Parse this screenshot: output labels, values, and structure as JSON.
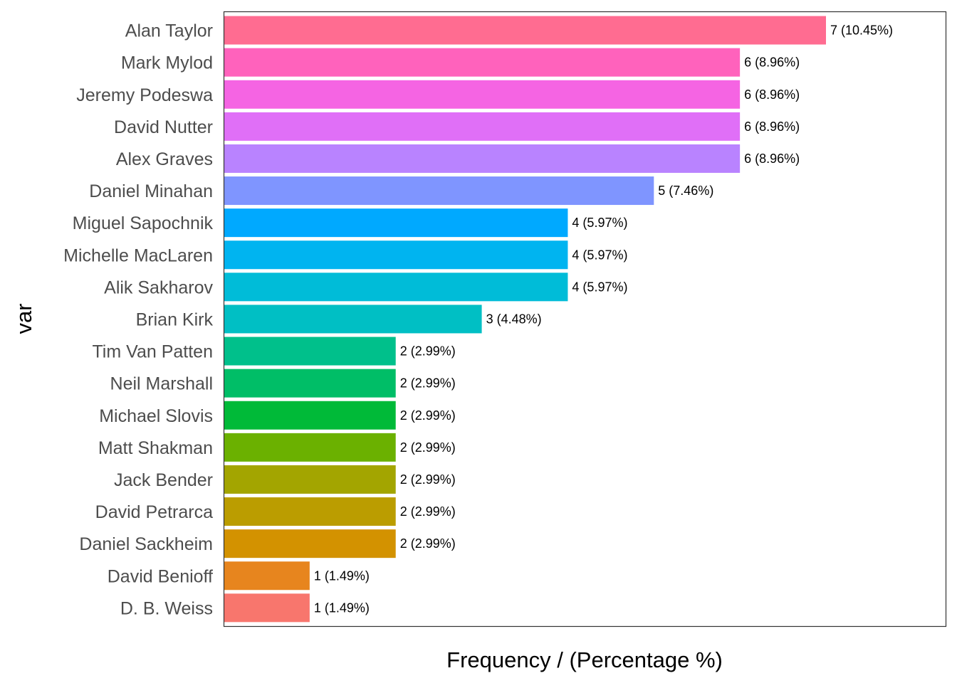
{
  "chart_data": {
    "type": "bar",
    "orientation": "horizontal",
    "xlabel": "Frequency / (Percentage %)",
    "ylabel": "var",
    "xlim": [
      0,
      7
    ],
    "grid": false,
    "legend": "none",
    "categories": [
      "Alan Taylor",
      "Mark Mylod",
      "Jeremy Podeswa",
      "David Nutter",
      "Alex Graves",
      "Daniel Minahan",
      "Miguel Sapochnik",
      "Michelle MacLaren",
      "Alik Sakharov",
      "Brian Kirk",
      "Tim Van Patten",
      "Neil Marshall",
      "Michael Slovis",
      "Matt Shakman",
      "Jack Bender",
      "David Petrarca",
      "Daniel Sackheim",
      "David Benioff",
      "D. B. Weiss"
    ],
    "values": [
      7,
      6,
      6,
      6,
      6,
      5,
      4,
      4,
      4,
      3,
      2,
      2,
      2,
      2,
      2,
      2,
      2,
      1,
      1
    ],
    "labels": [
      "7 (10.45%)",
      "6 (8.96%)",
      "6 (8.96%)",
      "6 (8.96%)",
      "6 (8.96%)",
      "5 (7.46%)",
      "4 (5.97%)",
      "4 (5.97%)",
      "4 (5.97%)",
      "3 (4.48%)",
      "2 (2.99%)",
      "2 (2.99%)",
      "2 (2.99%)",
      "2 (2.99%)",
      "2 (2.99%)",
      "2 (2.99%)",
      "2 (2.99%)",
      "1 (1.49%)",
      "1 (1.49%)"
    ],
    "colors": [
      "#FF6C91",
      "#FF62BC",
      "#F564E3",
      "#E06FF7",
      "#B983FF",
      "#7F95FF",
      "#00A9FF",
      "#00B4F0",
      "#00BCD8",
      "#00BFC4",
      "#00C08B",
      "#00BE67",
      "#00BA38",
      "#6BB100",
      "#A3A500",
      "#BB9D00",
      "#D39200",
      "#E7851E",
      "#F8766D"
    ]
  }
}
